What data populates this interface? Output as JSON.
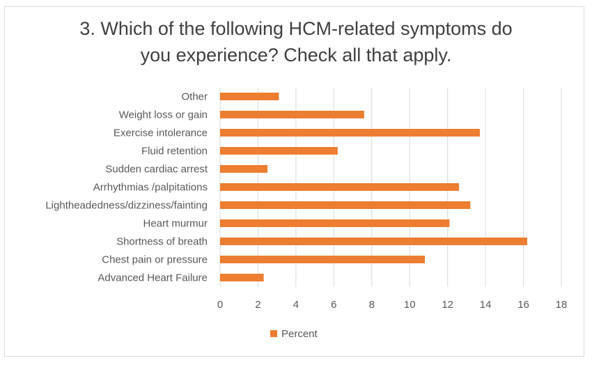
{
  "chart_data": {
    "type": "bar",
    "orientation": "horizontal",
    "title_line1": "3. Which of the following HCM-related symptoms do",
    "title_line2": "you experience?  Check all that apply.",
    "categories": [
      "Other",
      "Weight loss or gain",
      "Exercise intolerance",
      "Fluid retention",
      "Sudden cardiac arrest",
      "Arrhythmias /palpitations",
      "Lightheadedness/dizziness/fainting",
      "Heart murmur",
      "Shortness of breath",
      "Chest pain or pressure",
      "Advanced Heart Failure"
    ],
    "series": [
      {
        "name": "Percent",
        "color": "#ed7d31",
        "values": [
          3.1,
          7.6,
          13.7,
          6.2,
          2.5,
          12.6,
          13.2,
          12.1,
          16.2,
          10.8,
          2.3
        ]
      }
    ],
    "xlim": [
      0,
      18
    ],
    "xticks": [
      "0",
      "2",
      "4",
      "6",
      "8",
      "10",
      "12",
      "14",
      "16",
      "18"
    ],
    "grid": true,
    "legend_position": "bottom",
    "gridline_color": "#d9d9d9"
  }
}
